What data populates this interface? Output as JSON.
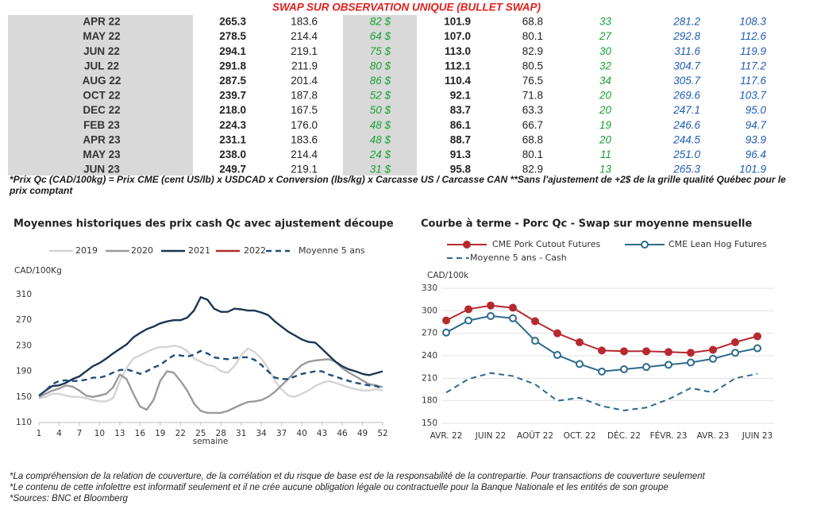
{
  "table": {
    "title": "SWAP SUR OBSERVATION UNIQUE (BULLET SWAP)",
    "rows": [
      [
        "APR 22",
        "265.3",
        "183.6",
        "82 $",
        "101.9",
        "68.8",
        "33",
        "281.2",
        "108.3"
      ],
      [
        "MAY 22",
        "278.5",
        "214.4",
        "64 $",
        "107.0",
        "80.1",
        "27",
        "292.8",
        "112.6"
      ],
      [
        "JUN 22",
        "294.1",
        "219.1",
        "75 $",
        "113.0",
        "82.9",
        "30",
        "311.6",
        "119.9"
      ],
      [
        "JUL 22",
        "291.8",
        "211.9",
        "80 $",
        "112.1",
        "80.5",
        "32",
        "304.7",
        "117.2"
      ],
      [
        "AUG 22",
        "287.5",
        "201.4",
        "86 $",
        "110.4",
        "76.5",
        "34",
        "305.7",
        "117.6"
      ],
      [
        "OCT 22",
        "239.7",
        "187.8",
        "52 $",
        "92.1",
        "71.8",
        "20",
        "269.6",
        "103.7"
      ],
      [
        "DEC 22",
        "218.0",
        "167.5",
        "50 $",
        "83.7",
        "63.3",
        "20",
        "247.1",
        "95.0"
      ],
      [
        "FEB 23",
        "224.3",
        "176.0",
        "48 $",
        "86.1",
        "66.7",
        "19",
        "246.6",
        "94.7"
      ],
      [
        "APR 23",
        "231.1",
        "183.6",
        "48 $",
        "88.7",
        "68.8",
        "20",
        "244.5",
        "93.9"
      ],
      [
        "MAY 23",
        "238.0",
        "214.4",
        "24 $",
        "91.3",
        "80.1",
        "11",
        "251.0",
        "96.4"
      ],
      [
        "JUN 23",
        "249.7",
        "219.1",
        "31 $",
        "95.8",
        "82.9",
        "13",
        "265.3",
        "101.9"
      ]
    ]
  },
  "footnote": "*Prix Qc (CAD/100kg) = Prix CME (cent US/lb) x USDCAD x Conversion (lbs/kg) x Carcasse US / Carcasse CAN **Sans l'ajustement de +2$ de la grille qualité Québec pour le prix comptant",
  "chart_data": [
    {
      "type": "line",
      "title": "Moyennes historiques des prix cash Qc avec ajustement découpe",
      "ylabel": "CAD/100Kg",
      "xlabel": "semaine",
      "x": [
        1,
        2,
        3,
        4,
        5,
        6,
        7,
        8,
        9,
        10,
        11,
        12,
        13,
        14,
        15,
        16,
        17,
        18,
        19,
        20,
        21,
        22,
        23,
        24,
        25,
        26,
        27,
        28,
        29,
        30,
        31,
        32,
        33,
        34,
        35,
        36,
        37,
        38,
        39,
        40,
        41,
        42,
        43,
        44,
        45,
        46,
        47,
        48,
        49,
        50,
        51,
        52
      ],
      "xlim": [
        1,
        52
      ],
      "xticks": [
        1,
        4,
        7,
        10,
        13,
        16,
        19,
        22,
        25,
        28,
        31,
        34,
        37,
        40,
        43,
        46,
        49,
        52
      ],
      "ylim": [
        110,
        310
      ],
      "yticks": [
        110,
        150,
        190,
        230,
        270,
        310
      ],
      "grid": false,
      "series": [
        {
          "name": "2019",
          "color": "#d4d4d4",
          "values": [
            148,
            150,
            155,
            155,
            152,
            150,
            150,
            148,
            145,
            143,
            143,
            148,
            175,
            195,
            210,
            215,
            220,
            225,
            228,
            228,
            230,
            228,
            222,
            210,
            205,
            200,
            198,
            190,
            188,
            198,
            215,
            226,
            220,
            210,
            195,
            175,
            162,
            152,
            150,
            155,
            160,
            167,
            172,
            175,
            172,
            168,
            165,
            162,
            160,
            160,
            162,
            160
          ]
        },
        {
          "name": "2020",
          "color": "#9a9a9a",
          "values": [
            150,
            155,
            160,
            163,
            168,
            166,
            160,
            152,
            150,
            152,
            155,
            165,
            185,
            178,
            155,
            135,
            130,
            145,
            175,
            190,
            188,
            175,
            160,
            140,
            128,
            125,
            125,
            125,
            128,
            133,
            138,
            142,
            143,
            145,
            150,
            158,
            168,
            178,
            190,
            200,
            205,
            207,
            208,
            209,
            205,
            195,
            188,
            182,
            176,
            170,
            168,
            165
          ]
        },
        {
          "name": "2021",
          "color": "#1c3553",
          "values": [
            152,
            160,
            167,
            168,
            172,
            178,
            182,
            190,
            198,
            203,
            210,
            218,
            225,
            232,
            243,
            250,
            256,
            260,
            265,
            268,
            270,
            270,
            274,
            285,
            306,
            302,
            288,
            283,
            283,
            288,
            287,
            285,
            285,
            282,
            278,
            268,
            260,
            252,
            246,
            240,
            236,
            235,
            225,
            215,
            205,
            198,
            193,
            190,
            186,
            184,
            187,
            190
          ]
        },
        {
          "name": "2022",
          "color": "#b22a2a",
          "values": [
            null,
            null,
            null,
            null,
            null,
            null,
            null,
            null,
            null,
            null,
            null,
            null,
            null,
            null,
            null,
            null,
            null,
            null,
            null,
            null,
            null,
            null,
            null,
            null,
            null,
            null,
            null,
            null,
            null,
            null,
            null,
            null,
            null,
            null,
            null,
            null,
            null,
            null,
            null,
            null,
            null,
            null,
            null,
            null,
            null,
            null,
            null,
            null,
            null,
            null,
            null,
            null
          ]
        },
        {
          "name": "Moyenne 5 ans",
          "color": "#1f4e79",
          "dash": true,
          "values": [
            152,
            160,
            170,
            175,
            176,
            175,
            175,
            177,
            180,
            180,
            183,
            188,
            192,
            193,
            190,
            186,
            190,
            196,
            200,
            208,
            215,
            215,
            213,
            216,
            222,
            218,
            212,
            210,
            209,
            211,
            212,
            212,
            208,
            200,
            190,
            180,
            178,
            178,
            182,
            186,
            188,
            190,
            190,
            185,
            182,
            178,
            175,
            172,
            170,
            168,
            167,
            163
          ]
        }
      ]
    },
    {
      "type": "line",
      "title": "Courbe à terme - Porc Qc - Swap sur moyenne mensuelle",
      "ylabel": "CAD/100k",
      "categories": [
        "AVR. 22",
        null,
        "JUIN 22",
        null,
        "AOÛT 22",
        null,
        "OCT. 22",
        null,
        "DÉC. 22",
        null,
        "FÉVR. 23",
        null,
        "AVR. 23",
        null,
        "JUIN 23"
      ],
      "ylim": [
        150,
        330
      ],
      "yticks": [
        150,
        180,
        210,
        240,
        270,
        300,
        330
      ],
      "grid": true,
      "series": [
        {
          "name": "CME Pork Cutout Futures",
          "color": "#b52a2f",
          "marker": true,
          "values": [
            287,
            302,
            307,
            304,
            286,
            270,
            258,
            247,
            246,
            246,
            245,
            244,
            248,
            258,
            266
          ]
        },
        {
          "name": "CME Lean Hog Futures",
          "color": "#2c6a8d",
          "marker": true,
          "values": [
            271,
            287,
            293,
            290,
            260,
            241,
            229,
            219,
            222,
            225,
            228,
            231,
            236,
            244,
            250
          ]
        },
        {
          "name": "Moyenne 5 ans - Cash",
          "color": "#2c6a8d",
          "dash": true,
          "values": [
            191,
            209,
            217,
            213,
            202,
            180,
            184,
            173,
            167,
            171,
            182,
            197,
            191,
            210,
            216
          ]
        }
      ]
    }
  ],
  "notes": [
    "*La compréhension de la relation de couverture, de la corrélation et du risque de base est de la responsabilité de la contrepartie. Pour transactions de couverture seulement",
    "*Le contenu de cette infolettre est informatif seulement et il ne crée aucune obligation légale ou contractuelle pour la Banque Nationale et les entités de son groupe",
    "*Sources: BNC et Bloomberg"
  ]
}
